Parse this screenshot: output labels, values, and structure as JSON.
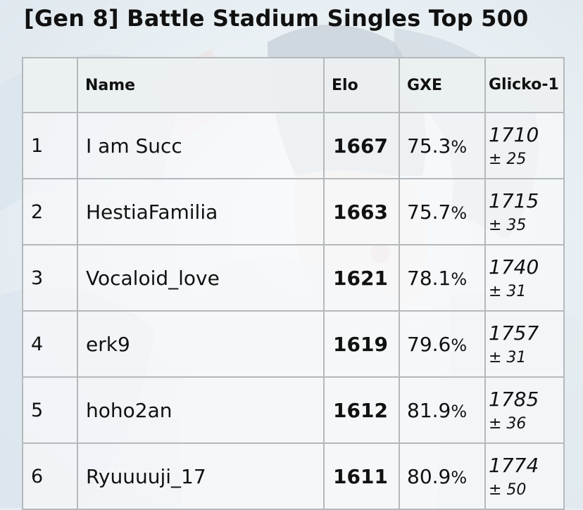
{
  "page": {
    "title": "[Gen 8] Battle Stadium Singles Top 500"
  },
  "table": {
    "headers": {
      "rank": "",
      "name": "Name",
      "elo": "Elo",
      "gxe": "GXE",
      "glicko": "Glicko-1"
    },
    "rows": [
      {
        "rank": "1",
        "name": "I am Succ",
        "elo": "1667",
        "gxe": "75.3",
        "gxe_unit": "%",
        "glicko": "1710",
        "glicko_dev": "± 25"
      },
      {
        "rank": "2",
        "name": "HestiaFamilia",
        "elo": "1663",
        "gxe": "75.7",
        "gxe_unit": "%",
        "glicko": "1715",
        "glicko_dev": "± 35"
      },
      {
        "rank": "3",
        "name": "Vocaloid_love",
        "elo": "1621",
        "gxe": "78.1",
        "gxe_unit": "%",
        "glicko": "1740",
        "glicko_dev": "± 31"
      },
      {
        "rank": "4",
        "name": "erk9",
        "elo": "1619",
        "gxe": "79.6",
        "gxe_unit": "%",
        "glicko": "1757",
        "glicko_dev": "± 31"
      },
      {
        "rank": "5",
        "name": "hoho2an",
        "elo": "1612",
        "gxe": "81.9",
        "gxe_unit": "%",
        "glicko": "1785",
        "glicko_dev": "± 36"
      },
      {
        "rank": "6",
        "name": "Ryuuuuji_17",
        "elo": "1611",
        "gxe": "80.9",
        "gxe_unit": "%",
        "glicko": "1774",
        "glicko_dev": "± 50"
      }
    ]
  },
  "colors": {
    "background": "#e6eef3",
    "border": "#b5b9bc",
    "text": "#111111"
  },
  "background_image": "faded-anime-artwork"
}
